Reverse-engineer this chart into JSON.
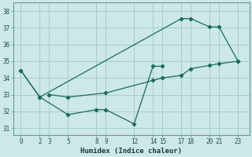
{
  "xlabel": "Humidex (Indice chaleur)",
  "bg_color": "#cce8e8",
  "grid_color": "#aacccc",
  "line_color": "#1a6b60",
  "lines": [
    {
      "x": [
        0,
        2,
        17,
        18,
        20,
        21,
        23
      ],
      "y": [
        34.45,
        32.85,
        37.55,
        37.55,
        37.05,
        37.05,
        35.0
      ]
    },
    {
      "x": [
        0,
        2,
        5,
        8,
        9,
        12,
        14,
        15
      ],
      "y": [
        34.45,
        32.85,
        31.8,
        32.1,
        32.1,
        31.25,
        34.7,
        34.7
      ]
    },
    {
      "x": [
        3,
        5,
        9,
        14,
        15,
        17,
        18,
        20,
        21,
        23
      ],
      "y": [
        33.0,
        32.85,
        33.1,
        33.85,
        34.0,
        34.15,
        34.55,
        34.75,
        34.85,
        35.0
      ]
    }
  ],
  "xticks": [
    0,
    2,
    3,
    5,
    8,
    9,
    12,
    14,
    15,
    17,
    18,
    20,
    21,
    23
  ],
  "yticks": [
    31,
    32,
    33,
    34,
    35,
    36,
    37,
    38
  ],
  "xlim": [
    -0.8,
    24.2
  ],
  "ylim": [
    30.6,
    38.5
  ]
}
